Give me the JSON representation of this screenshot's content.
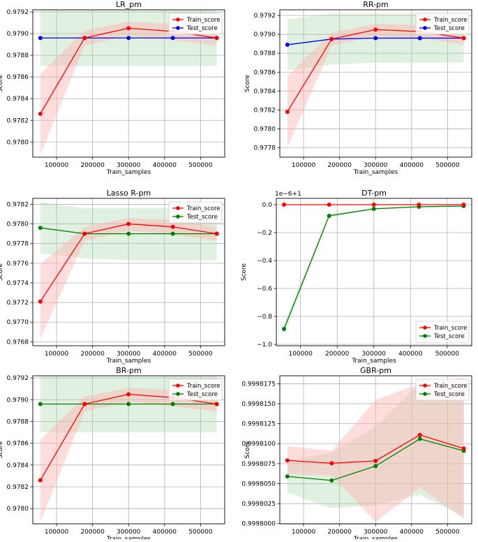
{
  "x_axis_label": "Train_samples",
  "y_axis_label": "Score",
  "legend_labels": {
    "train": "Train_score",
    "test": "Test_score"
  },
  "colors": {
    "train": "#ff0000",
    "train_band": "#ffb3b3",
    "test_blue": "#0000ff",
    "test_green": "#008000",
    "test_band": "#a8d8a8"
  },
  "chart_data": [
    {
      "type": "line",
      "title": "LR_pm",
      "xlabel": "Train_samples",
      "ylabel": "Score",
      "xlim": [
        34000,
        567000
      ],
      "ylim": [
        0.97786,
        0.97922
      ],
      "xticks": [
        100000,
        200000,
        300000,
        400000,
        500000
      ],
      "yticks": [
        0.9778,
        0.978,
        0.9782,
        0.9784,
        0.9786,
        0.9788,
        0.979,
        0.9792
      ],
      "ytick_labels": [
        "0.9780",
        "0.9782",
        "0.9784",
        "0.9786",
        "0.9788",
        "0.9790",
        "0.9792"
      ],
      "offset_label": "",
      "grid": true,
      "legend": "top-right",
      "test_color": "blue",
      "x": [
        55000,
        178000,
        300000,
        423000,
        545000
      ],
      "series": [
        {
          "name": "Train_score",
          "values": [
            0.97826,
            0.97896,
            0.97905,
            0.97902,
            0.97896
          ],
          "band_lower": [
            0.97788,
            0.97889,
            0.97898,
            0.97894,
            0.97889
          ],
          "band_upper": [
            0.97863,
            0.97903,
            0.97911,
            0.97909,
            0.97903
          ]
        },
        {
          "name": "Test_score",
          "values": [
            0.97896,
            0.97896,
            0.97896,
            0.97896,
            0.97896
          ],
          "band_lower": [
            0.9787,
            0.9787,
            0.9787,
            0.9787,
            0.9787
          ],
          "band_upper": [
            0.97922,
            0.97922,
            0.97922,
            0.97922,
            0.97922
          ]
        }
      ]
    },
    {
      "type": "line",
      "title": "RR-pm",
      "xlabel": "Train_samples",
      "ylabel": "Score",
      "xlim": [
        34000,
        567000
      ],
      "ylim": [
        0.9777,
        0.97926
      ],
      "xticks": [
        100000,
        200000,
        300000,
        400000,
        500000
      ],
      "yticks": [
        0.9778,
        0.978,
        0.9782,
        0.9784,
        0.9786,
        0.9788,
        0.979,
        0.9792
      ],
      "ytick_labels": [
        "0.9778",
        "0.9780",
        "0.9782",
        "0.9784",
        "0.9786",
        "0.9788",
        "0.9790",
        "0.9792"
      ],
      "offset_label": "",
      "grid": true,
      "legend": "top-right",
      "test_color": "blue",
      "x": [
        55000,
        178000,
        300000,
        423000,
        545000
      ],
      "series": [
        {
          "name": "Train_score",
          "values": [
            0.97818,
            0.97895,
            0.97905,
            0.97903,
            0.97896
          ],
          "band_lower": [
            0.9778,
            0.97888,
            0.97898,
            0.97896,
            0.97889
          ],
          "band_upper": [
            0.97856,
            0.97902,
            0.97911,
            0.9791,
            0.97903
          ]
        },
        {
          "name": "Test_score",
          "values": [
            0.97889,
            0.97895,
            0.97896,
            0.97896,
            0.97896
          ],
          "band_lower": [
            0.97862,
            0.97868,
            0.9787,
            0.9787,
            0.9787
          ],
          "band_upper": [
            0.97916,
            0.97922,
            0.97922,
            0.97922,
            0.97922
          ]
        }
      ]
    },
    {
      "type": "line",
      "title": "Lasso R-pm",
      "xlabel": "Train_samples",
      "ylabel": "Score",
      "xlim": [
        34000,
        567000
      ],
      "ylim": [
        0.97676,
        0.97826
      ],
      "xticks": [
        100000,
        200000,
        300000,
        400000,
        500000
      ],
      "yticks": [
        0.9768,
        0.977,
        0.9772,
        0.9774,
        0.9776,
        0.9778,
        0.978,
        0.9782
      ],
      "ytick_labels": [
        "0.9768",
        "0.9770",
        "0.9772",
        "0.9774",
        "0.9776",
        "0.9778",
        "0.9780",
        "0.9782"
      ],
      "offset_label": "",
      "grid": true,
      "legend": "top-right",
      "test_color": "green",
      "x": [
        55000,
        178000,
        300000,
        423000,
        545000
      ],
      "series": [
        {
          "name": "Train_score",
          "values": [
            0.97721,
            0.9779,
            0.978,
            0.97797,
            0.9779
          ],
          "band_lower": [
            0.97683,
            0.97783,
            0.97793,
            0.97789,
            0.97783
          ],
          "band_upper": [
            0.97759,
            0.97797,
            0.97806,
            0.97804,
            0.97797
          ]
        },
        {
          "name": "Test_score",
          "values": [
            0.97796,
            0.9779,
            0.9779,
            0.9779,
            0.9779
          ],
          "band_lower": [
            0.9777,
            0.97765,
            0.97763,
            0.97763,
            0.97763
          ],
          "band_upper": [
            0.97822,
            0.97816,
            0.97816,
            0.97816,
            0.97816
          ]
        }
      ]
    },
    {
      "type": "line",
      "title": "DT-pm",
      "xlabel": "Train_samples",
      "ylabel": "Score",
      "xlim": [
        34000,
        567000
      ],
      "ylim": [
        -1.01,
        0.045
      ],
      "xticks": [
        100000,
        200000,
        300000,
        400000,
        500000
      ],
      "yticks": [
        -1.0,
        -0.8,
        -0.6,
        -0.4,
        -0.2,
        0.0
      ],
      "ytick_labels": [
        "−1.0",
        "−0.8",
        "−0.6",
        "−0.4",
        "−0.2",
        "0.0"
      ],
      "offset_label": "1e−6+1",
      "grid": true,
      "legend": "bottom-right",
      "test_color": "green",
      "x": [
        55000,
        178000,
        300000,
        423000,
        545000
      ],
      "series": [
        {
          "name": "Train_score",
          "values": [
            0.0,
            0.0,
            0.0,
            0.0,
            0.0
          ]
        },
        {
          "name": "Test_score",
          "values": [
            -0.89,
            -0.08,
            -0.03,
            -0.015,
            -0.01
          ],
          "band_lower": [
            -0.93,
            -0.09,
            -0.035,
            -0.02,
            -0.013
          ],
          "band_upper": [
            -0.85,
            -0.07,
            -0.025,
            -0.01,
            -0.007
          ]
        }
      ]
    },
    {
      "type": "line",
      "title": "BR-pm",
      "xlabel": "Train_samples",
      "ylabel": "Score",
      "xlim": [
        34000,
        567000
      ],
      "ylim": [
        0.97786,
        0.97922
      ],
      "xticks": [
        100000,
        200000,
        300000,
        400000,
        500000
      ],
      "yticks": [
        0.9778,
        0.978,
        0.9782,
        0.9784,
        0.9786,
        0.9788,
        0.979,
        0.9792
      ],
      "ytick_labels": [
        "0.9780",
        "0.9782",
        "0.9784",
        "0.9786",
        "0.9788",
        "0.9790",
        "0.9792"
      ],
      "offset_label": "",
      "grid": true,
      "legend": "top-right",
      "test_color": "green",
      "x": [
        55000,
        178000,
        300000,
        423000,
        545000
      ],
      "series": [
        {
          "name": "Train_score",
          "values": [
            0.97826,
            0.97896,
            0.97905,
            0.97902,
            0.97896
          ],
          "band_lower": [
            0.97788,
            0.97889,
            0.97898,
            0.97894,
            0.97889
          ],
          "band_upper": [
            0.97863,
            0.97903,
            0.97911,
            0.97909,
            0.97903
          ]
        },
        {
          "name": "Test_score",
          "values": [
            0.97896,
            0.97896,
            0.97896,
            0.97896,
            0.97896
          ],
          "band_lower": [
            0.9787,
            0.9787,
            0.9787,
            0.9787,
            0.9787
          ],
          "band_upper": [
            0.97922,
            0.97922,
            0.97922,
            0.97922,
            0.97922
          ]
        }
      ]
    },
    {
      "type": "line",
      "title": "GBR-pm",
      "xlabel": "Train_samples",
      "ylabel": "Score",
      "xlim": [
        34000,
        567000
      ],
      "ylim": [
        0.99979997,
        0.9998185
      ],
      "xticks": [
        100000,
        200000,
        300000,
        400000,
        500000
      ],
      "yticks": [
        0.9998,
        0.9998025,
        0.999805,
        0.9998075,
        0.99981,
        0.9998125,
        0.999815,
        0.9998175
      ],
      "ytick_labels": [
        "0.9998000",
        "0.9998025",
        "0.9998050",
        "0.9998075",
        "0.9998100",
        "0.9998125",
        "0.9998150",
        "0.9998175"
      ],
      "offset_label": "",
      "grid": true,
      "legend": "top-right",
      "test_color": "green",
      "x": [
        55000,
        178000,
        300000,
        423000,
        545000
      ],
      "series": [
        {
          "name": "Train_score",
          "values": [
            0.9998079,
            0.99980755,
            0.99980785,
            0.9998111,
            0.9998094
          ],
          "band_lower": [
            0.9998062,
            0.999806,
            0.9998002,
            0.9998045,
            0.9998006
          ],
          "band_upper": [
            0.9998097,
            0.9998091,
            0.9998155,
            0.9998175,
            0.9998183
          ]
        },
        {
          "name": "Test_score",
          "values": [
            0.9998059,
            0.9998054,
            0.9998072,
            0.9998106,
            0.9998091
          ],
          "band_lower": [
            0.9998039,
            0.9998019,
            0.9998023,
            0.9998036,
            0.9998009
          ],
          "band_upper": [
            0.9998079,
            0.9998089,
            0.9998121,
            0.9998176,
            0.9998173
          ]
        }
      ]
    }
  ]
}
